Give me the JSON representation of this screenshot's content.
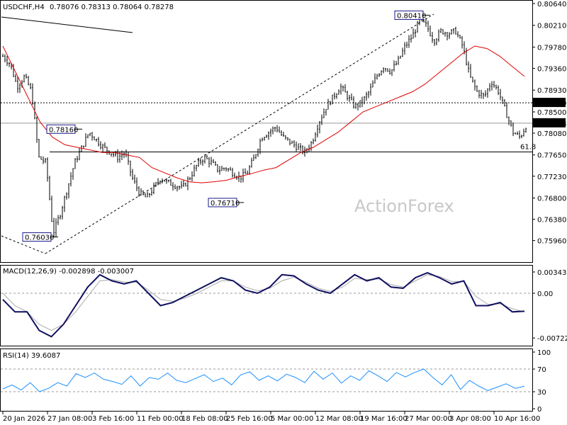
{
  "chart_data": [
    {
      "type": "candlestick",
      "title": "USDCHF,H4",
      "ohlc_text": "0.78076 0.78313 0.78064 0.78278",
      "watermark": "ActionForex",
      "ylim": [
        0.7559,
        0.8064
      ],
      "y_ticks": [
        "0.80640",
        "0.80210",
        "0.79780",
        "0.79360",
        "0.78930",
        "0.78500",
        "0.78080",
        "0.77650",
        "0.77230",
        "0.76800",
        "0.76380",
        "0.75960"
      ],
      "x_ticks": [
        "20 Jan 2026",
        "27 Jan 08:00",
        "3 Feb 16:00",
        "11 Feb 00:00",
        "18 Feb 08:00",
        "25 Feb 16:00",
        "5 Mar 00:00",
        "12 Mar 08:00",
        "19 Mar 16:00",
        "27 Mar 00:00",
        "3 Apr 08:00",
        "10 Apr 16:00"
      ],
      "current_price": "0.78278",
      "level_badge": "0.78680",
      "fib_label": "61.8",
      "fib_level": 0.7771,
      "annotations": [
        {
          "text": "0.76030",
          "value": 0.7603
        },
        {
          "text": "0.78160",
          "value": 0.7816
        },
        {
          "text": "0.76710",
          "value": 0.7671
        },
        {
          "text": "0.80410",
          "value": 0.8041
        }
      ],
      "price_path": [
        0.796,
        0.7945,
        0.79,
        0.792,
        0.789,
        0.776,
        0.775,
        0.761,
        0.765,
        0.77,
        0.775,
        0.778,
        0.781,
        0.7795,
        0.778,
        0.777,
        0.776,
        0.777,
        0.772,
        0.769,
        0.768,
        0.77,
        0.772,
        0.771,
        0.7705,
        0.77,
        0.772,
        0.7745,
        0.776,
        0.775,
        0.7735,
        0.774,
        0.773,
        0.772,
        0.773,
        0.776,
        0.78,
        0.781,
        0.782,
        0.78,
        0.779,
        0.778,
        0.777,
        0.779,
        0.783,
        0.786,
        0.788,
        0.79,
        0.788,
        0.786,
        0.787,
        0.789,
        0.792,
        0.794,
        0.793,
        0.795,
        0.798,
        0.8,
        0.803,
        0.802,
        0.799,
        0.801,
        0.8005,
        0.801,
        0.798,
        0.792,
        0.789,
        0.788,
        0.791,
        0.789,
        0.785,
        0.781,
        0.78,
        0.7828
      ],
      "sma_path": [
        0.798,
        0.793,
        0.788,
        0.783,
        0.78,
        0.7785,
        0.778,
        0.7775,
        0.777,
        0.777,
        0.7765,
        0.776,
        0.774,
        0.773,
        0.772,
        0.7712,
        0.771,
        0.7712,
        0.7715,
        0.7722,
        0.7728,
        0.7735,
        0.774,
        0.7755,
        0.777,
        0.778,
        0.7795,
        0.781,
        0.783,
        0.785,
        0.786,
        0.787,
        0.788,
        0.789,
        0.7905,
        0.7925,
        0.7945,
        0.7965,
        0.798,
        0.7975,
        0.796,
        0.794,
        0.792
      ],
      "macd": {
        "label": "MACD(12,26,9) -0.002898 -0.003007",
        "ticks": [
          "0.003432",
          "0.00",
          "-0.007223"
        ],
        "range": [
          -0.008,
          0.004
        ],
        "main": [
          -0.001,
          -0.003,
          -0.003,
          -0.006,
          -0.007,
          -0.005,
          -0.002,
          0.001,
          0.003,
          0.002,
          0.0015,
          0.002,
          0.0,
          -0.002,
          -0.0015,
          -0.0005,
          0.0005,
          0.0015,
          0.0025,
          0.002,
          0.0005,
          0.0,
          0.001,
          0.003,
          0.0028,
          0.0015,
          0.0005,
          0.0,
          0.0015,
          0.003,
          0.002,
          0.0025,
          0.001,
          0.0008,
          0.0025,
          0.0033,
          0.0025,
          0.0015,
          0.002,
          -0.002,
          -0.002,
          -0.0015,
          -0.003,
          -0.0029
        ],
        "signal": [
          0.0,
          -0.002,
          -0.003,
          -0.005,
          -0.006,
          -0.005,
          -0.003,
          -0.0005,
          0.002,
          0.0022,
          0.0018,
          0.0018,
          0.0005,
          -0.001,
          -0.0013,
          -0.0008,
          0.0,
          0.001,
          0.002,
          0.002,
          0.001,
          0.0004,
          0.0008,
          0.002,
          0.0026,
          0.0018,
          0.0008,
          0.0003,
          0.001,
          0.0024,
          0.0022,
          0.0023,
          0.0014,
          0.001,
          0.002,
          0.003,
          0.0027,
          0.0019,
          0.0019,
          -0.0005,
          -0.0018,
          -0.0017,
          -0.0025,
          -0.003
        ]
      },
      "rsi": {
        "label": "RSI(14) 39.6087",
        "ticks": [
          "100",
          "70",
          "30",
          "0"
        ],
        "levels": [
          70,
          30
        ],
        "range": [
          0,
          100
        ],
        "values": [
          35,
          42,
          33,
          46,
          30,
          36,
          46,
          40,
          62,
          55,
          63,
          52,
          48,
          43,
          58,
          40,
          55,
          52,
          63,
          50,
          46,
          53,
          60,
          48,
          54,
          42,
          60,
          65,
          50,
          58,
          49,
          61,
          55,
          46,
          66,
          52,
          63,
          45,
          58,
          50,
          67,
          58,
          48,
          64,
          56,
          64,
          70,
          55,
          42,
          60,
          34,
          50,
          40,
          32,
          38,
          44,
          36,
          39.6
        ]
      }
    }
  ]
}
